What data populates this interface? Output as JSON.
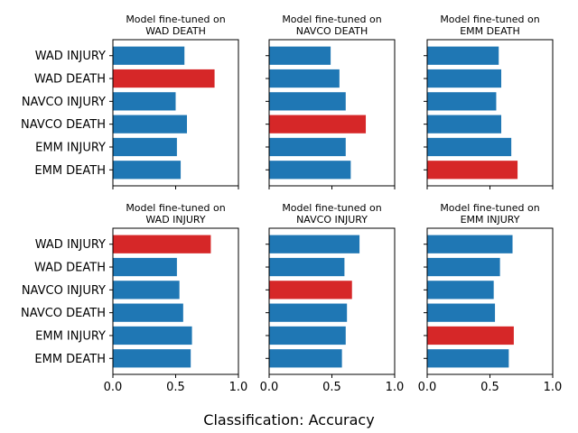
{
  "chart_data": {
    "type": "bar",
    "orientation": "horizontal",
    "layout": "2 rows x 3 columns, shared x and y axes",
    "xlabel": "Classification: Accuracy",
    "xlim": [
      0.0,
      1.0
    ],
    "xticks": [
      "0.0",
      "0.5",
      "1.0"
    ],
    "categories": [
      "WAD INJURY",
      "WAD DEATH",
      "NAVCO INJURY",
      "NAVCO DEATH",
      "EMM INJURY",
      "EMM DEATH"
    ],
    "colors": {
      "default": "#1f77b4",
      "highlight": "#d62728"
    },
    "panels": [
      {
        "title_line1": "Model fine-tuned on",
        "title_line2": "WAD DEATH",
        "values": [
          0.57,
          0.81,
          0.5,
          0.59,
          0.51,
          0.54
        ],
        "highlight_index": 1
      },
      {
        "title_line1": "Model fine-tuned on",
        "title_line2": "NAVCO DEATH",
        "values": [
          0.49,
          0.56,
          0.61,
          0.77,
          0.61,
          0.65
        ],
        "highlight_index": 3
      },
      {
        "title_line1": "Model fine-tuned on",
        "title_line2": "EMM DEATH",
        "values": [
          0.57,
          0.59,
          0.55,
          0.59,
          0.67,
          0.72
        ],
        "highlight_index": 5
      },
      {
        "title_line1": "Model fine-tuned on",
        "title_line2": "WAD INJURY",
        "values": [
          0.78,
          0.51,
          0.53,
          0.56,
          0.63,
          0.62
        ],
        "highlight_index": 0
      },
      {
        "title_line1": "Model fine-tuned on",
        "title_line2": "NAVCO INJURY",
        "values": [
          0.72,
          0.6,
          0.66,
          0.62,
          0.61,
          0.58
        ],
        "highlight_index": 2
      },
      {
        "title_line1": "Model fine-tuned on",
        "title_line2": "EMM INJURY",
        "values": [
          0.68,
          0.58,
          0.53,
          0.54,
          0.69,
          0.65
        ],
        "highlight_index": 4
      }
    ]
  }
}
